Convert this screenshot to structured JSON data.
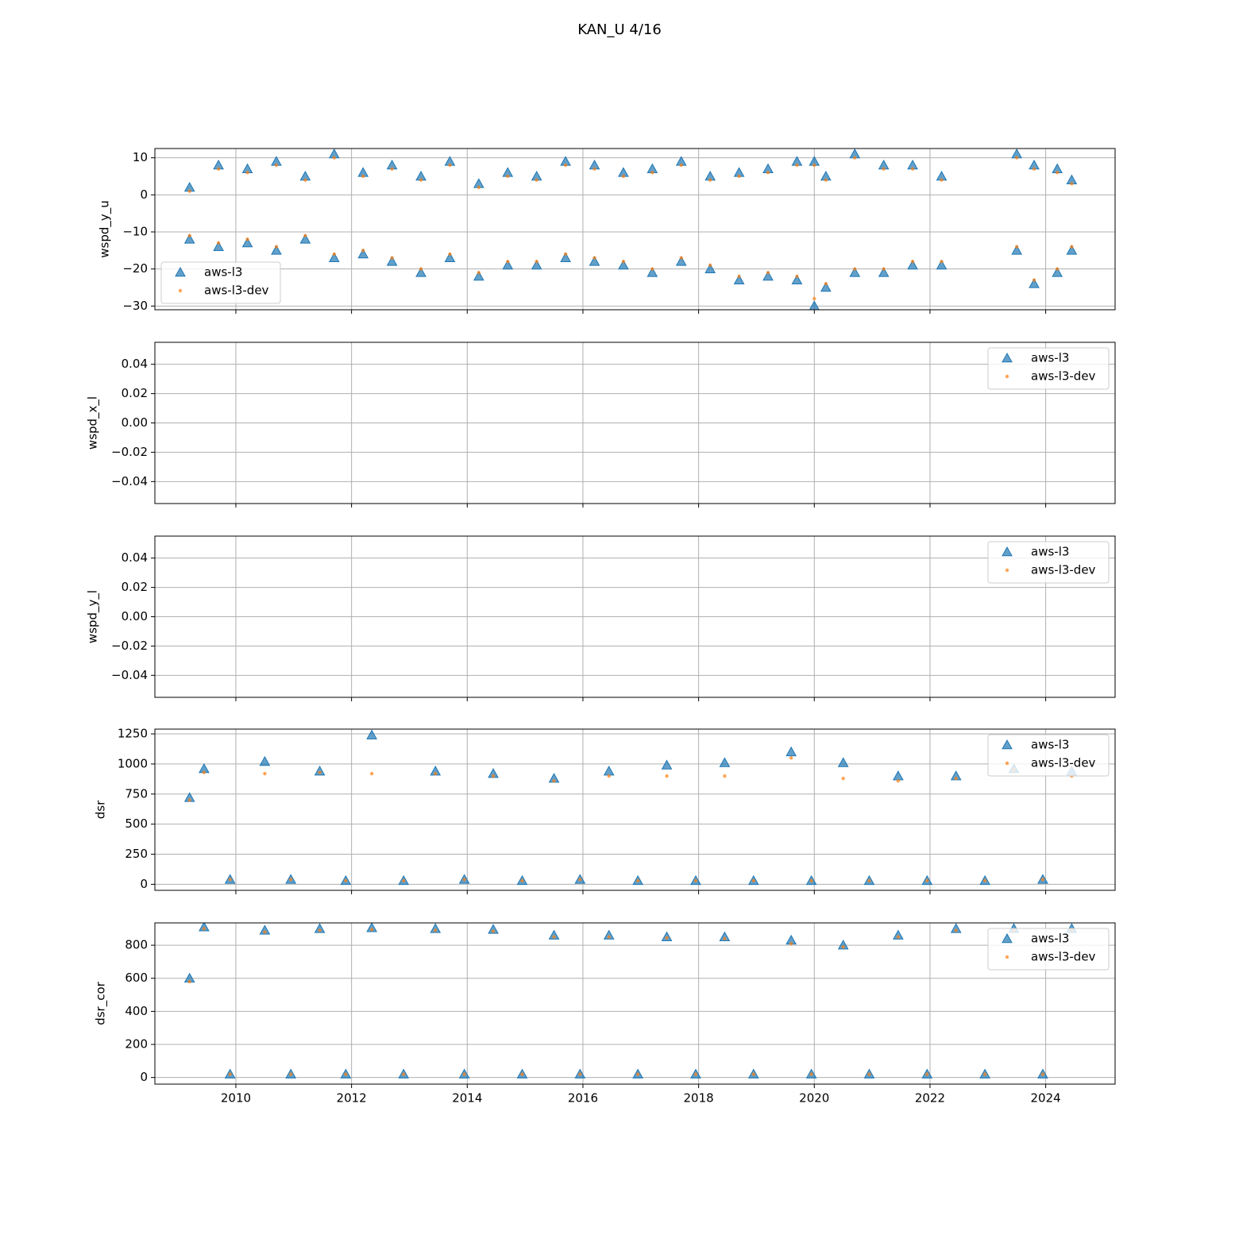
{
  "title": "KAN_U 4/16",
  "chart_data": [
    {
      "type": "scatter",
      "ylabel": "wspd_y_u",
      "legend": "lower left",
      "xlim": [
        2008.6,
        2025.2
      ],
      "xticks": [
        2010,
        2012,
        2014,
        2016,
        2018,
        2020,
        2022,
        2024
      ],
      "ylim": [
        -31,
        12.5
      ],
      "yticks": [
        {
          "value": -30,
          "label": "−30"
        },
        {
          "value": -20,
          "label": "−20"
        },
        {
          "value": -10,
          "label": "−10"
        },
        0,
        10
      ],
      "grid": true,
      "x": [
        2009.2,
        2009.2,
        2009.7,
        2009.7,
        2010.2,
        2010.2,
        2010.7,
        2010.7,
        2011.2,
        2011.2,
        2011.7,
        2011.7,
        2012.2,
        2012.2,
        2012.7,
        2012.7,
        2013.2,
        2013.2,
        2013.7,
        2013.7,
        2014.2,
        2014.2,
        2014.7,
        2014.7,
        2015.2,
        2015.2,
        2015.7,
        2015.7,
        2016.2,
        2016.2,
        2016.7,
        2016.7,
        2017.2,
        2017.2,
        2017.7,
        2017.7,
        2018.2,
        2018.2,
        2018.7,
        2018.7,
        2019.2,
        2019.2,
        2019.7,
        2019.7,
        2020.0,
        2020.0,
        2020.2,
        2020.2,
        2020.7,
        2020.7,
        2021.2,
        2021.2,
        2021.7,
        2021.7,
        2022.2,
        2022.2,
        2023.5,
        2023.5,
        2023.8,
        2023.8,
        2024.2,
        2024.2,
        2024.45,
        2024.45
      ],
      "series": [
        {
          "name": "aws-l3",
          "color": "#1f77b4",
          "marker": "triangle",
          "values": [
            2,
            -12,
            8,
            -14,
            7,
            -13,
            9,
            -15,
            5,
            -12,
            11,
            -17,
            6,
            -16,
            8,
            -18,
            5,
            -21,
            9,
            -17,
            3,
            -22,
            6,
            -19,
            5,
            -19,
            9,
            -17,
            8,
            -18,
            6,
            -19,
            7,
            -21,
            9,
            -18,
            5,
            -20,
            6,
            -23,
            7,
            -22,
            9,
            -23,
            9,
            -30,
            5,
            -25,
            11,
            -21,
            8,
            -21,
            8,
            -19,
            5,
            -19,
            11,
            -15,
            8,
            -24,
            7,
            -21,
            4,
            -15
          ]
        },
        {
          "name": "aws-l3-dev",
          "color": "#ff7f0e",
          "marker": "circle",
          "values": [
            1,
            -11,
            7,
            -13,
            6,
            -12,
            8,
            -14,
            4,
            -11,
            10,
            -16,
            5,
            -15,
            7,
            -17,
            4,
            -20,
            8,
            -16,
            2,
            -21,
            5,
            -18,
            4,
            -18,
            8,
            -16,
            7,
            -17,
            5,
            -18,
            6,
            -20,
            8,
            -17,
            4,
            -19,
            5,
            -22,
            6,
            -21,
            8,
            -22,
            8,
            -28,
            4,
            -24,
            10,
            -20,
            7,
            -20,
            7,
            -18,
            4,
            -18,
            10,
            -14,
            7,
            -23,
            6,
            -20,
            3,
            -14
          ]
        }
      ]
    },
    {
      "type": "scatter",
      "ylabel": "wspd_x_l",
      "legend": "upper right",
      "xlim": [
        2008.6,
        2025.2
      ],
      "xticks": [
        2010,
        2012,
        2014,
        2016,
        2018,
        2020,
        2022,
        2024
      ],
      "ylim": [
        -0.055,
        0.055
      ],
      "yticks": [
        {
          "value": -0.04,
          "label": "−0.04"
        },
        {
          "value": -0.02,
          "label": "−0.02"
        },
        {
          "value": 0,
          "label": "0.00"
        },
        0.02,
        0.04
      ],
      "grid": true,
      "x": [],
      "series": [
        {
          "name": "aws-l3",
          "color": "#1f77b4",
          "marker": "triangle",
          "values": []
        },
        {
          "name": "aws-l3-dev",
          "color": "#ff7f0e",
          "marker": "circle",
          "values": []
        }
      ]
    },
    {
      "type": "scatter",
      "ylabel": "wspd_y_l",
      "legend": "upper right",
      "xlim": [
        2008.6,
        2025.2
      ],
      "xticks": [
        2010,
        2012,
        2014,
        2016,
        2018,
        2020,
        2022,
        2024
      ],
      "ylim": [
        -0.055,
        0.055
      ],
      "yticks": [
        {
          "value": -0.04,
          "label": "−0.04"
        },
        {
          "value": -0.02,
          "label": "−0.02"
        },
        {
          "value": 0,
          "label": "0.00"
        },
        0.02,
        0.04
      ],
      "grid": true,
      "x": [],
      "series": [
        {
          "name": "aws-l3",
          "color": "#1f77b4",
          "marker": "triangle",
          "values": []
        },
        {
          "name": "aws-l3-dev",
          "color": "#ff7f0e",
          "marker": "circle",
          "values": []
        }
      ]
    },
    {
      "type": "scatter",
      "ylabel": "dsr",
      "legend": "upper right",
      "xlim": [
        2008.6,
        2025.2
      ],
      "xticks": [
        2010,
        2012,
        2014,
        2016,
        2018,
        2020,
        2022,
        2024
      ],
      "ylim": [
        -50,
        1290
      ],
      "yticks": [
        0,
        250,
        500,
        750,
        1000,
        1250
      ],
      "grid": true,
      "x": [
        2009.2,
        2009.45,
        2009.9,
        2010.5,
        2010.95,
        2011.45,
        2011.9,
        2012.35,
        2012.9,
        2013.45,
        2013.95,
        2014.45,
        2014.95,
        2015.5,
        2015.95,
        2016.45,
        2016.95,
        2017.45,
        2017.95,
        2018.45,
        2018.95,
        2019.6,
        2019.95,
        2020.5,
        2020.95,
        2021.45,
        2021.95,
        2022.45,
        2022.95,
        2023.45,
        2023.95,
        2024.45
      ],
      "series": [
        {
          "name": "aws-l3",
          "color": "#1f77b4",
          "marker": "triangle",
          "values": [
            720,
            960,
            40,
            1020,
            40,
            940,
            30,
            1240,
            30,
            940,
            40,
            920,
            30,
            880,
            40,
            940,
            30,
            990,
            30,
            1010,
            30,
            1100,
            30,
            1010,
            30,
            900,
            30,
            900,
            30,
            960,
            40,
            940
          ]
        },
        {
          "name": "aws-l3-dev",
          "color": "#ff7f0e",
          "marker": "circle",
          "values": [
            700,
            930,
            40,
            920,
            40,
            930,
            30,
            920,
            30,
            920,
            40,
            900,
            30,
            860,
            40,
            900,
            30,
            900,
            30,
            900,
            30,
            1050,
            30,
            880,
            30,
            860,
            30,
            880,
            30,
            950,
            40,
            900
          ]
        }
      ]
    },
    {
      "type": "scatter",
      "ylabel": "dsr_cor",
      "legend": "upper right",
      "xlim": [
        2008.6,
        2025.2
      ],
      "xticks": [
        2010,
        2012,
        2014,
        2016,
        2018,
        2020,
        2022,
        2024
      ],
      "ylim": [
        -40,
        935
      ],
      "yticks": [
        0,
        200,
        400,
        600,
        800
      ],
      "grid": true,
      "x": [
        2009.2,
        2009.45,
        2009.9,
        2010.5,
        2010.95,
        2011.45,
        2011.9,
        2012.35,
        2012.9,
        2013.45,
        2013.95,
        2014.45,
        2014.95,
        2015.5,
        2015.95,
        2016.45,
        2016.95,
        2017.45,
        2017.95,
        2018.45,
        2018.95,
        2019.6,
        2019.95,
        2020.5,
        2020.95,
        2021.45,
        2021.95,
        2022.45,
        2022.95,
        2023.45,
        2023.95,
        2024.45
      ],
      "series": [
        {
          "name": "aws-l3",
          "color": "#1f77b4",
          "marker": "triangle",
          "values": [
            600,
            910,
            20,
            890,
            20,
            900,
            20,
            905,
            20,
            900,
            20,
            895,
            20,
            860,
            20,
            860,
            20,
            850,
            20,
            850,
            20,
            830,
            20,
            800,
            20,
            860,
            20,
            900,
            20,
            900,
            20,
            900
          ]
        },
        {
          "name": "aws-l3-dev",
          "color": "#ff7f0e",
          "marker": "circle",
          "values": [
            580,
            900,
            20,
            880,
            20,
            890,
            20,
            895,
            20,
            890,
            20,
            885,
            20,
            850,
            20,
            850,
            20,
            845,
            20,
            840,
            20,
            810,
            20,
            790,
            20,
            850,
            20,
            890,
            20,
            890,
            20,
            890
          ]
        }
      ]
    }
  ]
}
